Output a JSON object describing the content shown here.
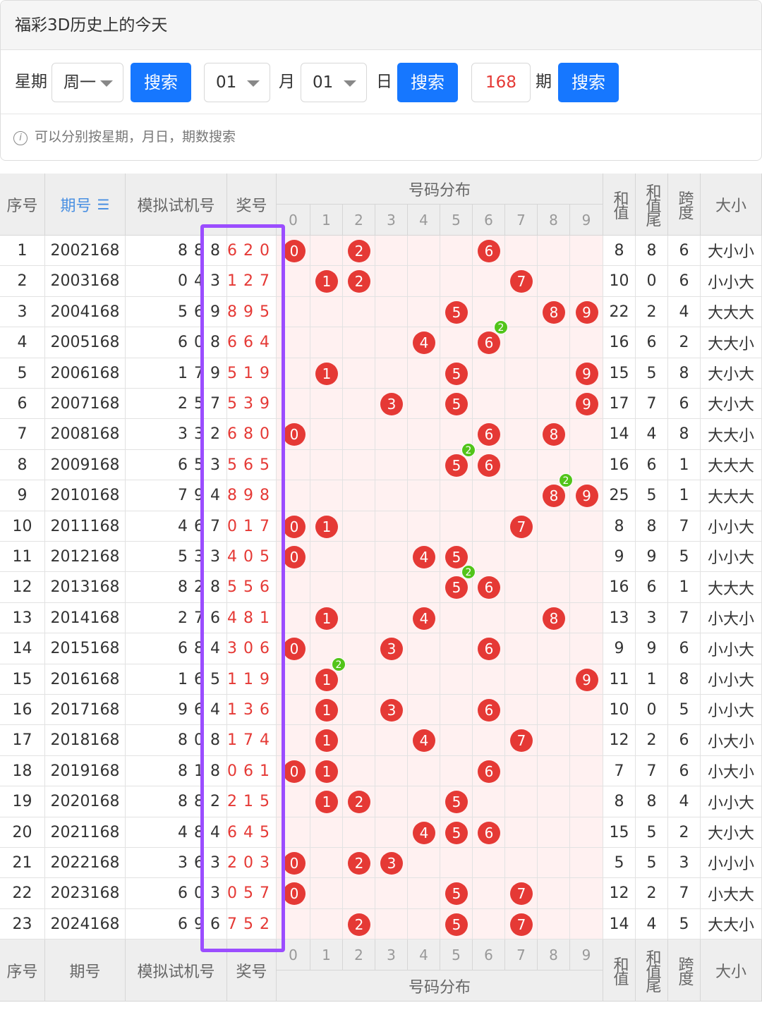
{
  "header": {
    "title": "福彩3D历史上的今天"
  },
  "search": {
    "weekday_label": "星期",
    "weekday_value": "周一",
    "search_label": "搜索",
    "month_value": "01",
    "month_label": "月",
    "day_value": "01",
    "day_label": "日",
    "issue_value": "168",
    "issue_label": "期",
    "hint": "可以分别按星期，月日，期数搜索"
  },
  "table": {
    "col_seq": "序号",
    "col_issue": "期号",
    "col_sort_icon": "sort-icon",
    "col_sim": "模拟试机号",
    "col_prize": "奖号",
    "col_dist": "号码分布",
    "digits": [
      "0",
      "1",
      "2",
      "3",
      "4",
      "5",
      "6",
      "7",
      "8",
      "9"
    ],
    "col_sum": "和值",
    "col_sum_tail": "和值尾",
    "col_span": "跨度",
    "col_size": "大小",
    "rows": [
      {
        "seq": "1",
        "issue": "2002168",
        "sim": "8 8 8",
        "prize": "6 2 0",
        "sum": "8",
        "tail": "8",
        "span": "6",
        "size": "大小小"
      },
      {
        "seq": "2",
        "issue": "2003168",
        "sim": "0 4 3",
        "prize": "1 2 7",
        "sum": "10",
        "tail": "0",
        "span": "6",
        "size": "小小大"
      },
      {
        "seq": "3",
        "issue": "2004168",
        "sim": "5 6 9",
        "prize": "8 9 5",
        "sum": "22",
        "tail": "2",
        "span": "4",
        "size": "大大大"
      },
      {
        "seq": "4",
        "issue": "2005168",
        "sim": "6 0 8",
        "prize": "6 6 4",
        "sum": "16",
        "tail": "6",
        "span": "2",
        "size": "大大小"
      },
      {
        "seq": "5",
        "issue": "2006168",
        "sim": "1 7 9",
        "prize": "5 1 9",
        "sum": "15",
        "tail": "5",
        "span": "8",
        "size": "大小大"
      },
      {
        "seq": "6",
        "issue": "2007168",
        "sim": "2 5 7",
        "prize": "5 3 9",
        "sum": "17",
        "tail": "7",
        "span": "6",
        "size": "大小大"
      },
      {
        "seq": "7",
        "issue": "2008168",
        "sim": "3 3 2",
        "prize": "6 8 0",
        "sum": "14",
        "tail": "4",
        "span": "8",
        "size": "大大小"
      },
      {
        "seq": "8",
        "issue": "2009168",
        "sim": "6 5 3",
        "prize": "5 6 5",
        "sum": "16",
        "tail": "6",
        "span": "1",
        "size": "大大大"
      },
      {
        "seq": "9",
        "issue": "2010168",
        "sim": "7 9 4",
        "prize": "8 9 8",
        "sum": "25",
        "tail": "5",
        "span": "1",
        "size": "大大大"
      },
      {
        "seq": "10",
        "issue": "2011168",
        "sim": "4 6 7",
        "prize": "0 1 7",
        "sum": "8",
        "tail": "8",
        "span": "7",
        "size": "小小大"
      },
      {
        "seq": "11",
        "issue": "2012168",
        "sim": "5 3 3",
        "prize": "4 0 5",
        "sum": "9",
        "tail": "9",
        "span": "5",
        "size": "小小大"
      },
      {
        "seq": "12",
        "issue": "2013168",
        "sim": "8 2 8",
        "prize": "5 5 6",
        "sum": "16",
        "tail": "6",
        "span": "1",
        "size": "大大大"
      },
      {
        "seq": "13",
        "issue": "2014168",
        "sim": "2 7 6",
        "prize": "4 8 1",
        "sum": "13",
        "tail": "3",
        "span": "7",
        "size": "小大小"
      },
      {
        "seq": "14",
        "issue": "2015168",
        "sim": "6 8 4",
        "prize": "3 0 6",
        "sum": "9",
        "tail": "9",
        "span": "6",
        "size": "小小大"
      },
      {
        "seq": "15",
        "issue": "2016168",
        "sim": "1 6 5",
        "prize": "1 1 9",
        "sum": "11",
        "tail": "1",
        "span": "8",
        "size": "小小大"
      },
      {
        "seq": "16",
        "issue": "2017168",
        "sim": "9 6 4",
        "prize": "1 3 6",
        "sum": "10",
        "tail": "0",
        "span": "5",
        "size": "小小大"
      },
      {
        "seq": "17",
        "issue": "2018168",
        "sim": "8 0 8",
        "prize": "1 7 4",
        "sum": "12",
        "tail": "2",
        "span": "6",
        "size": "小大小"
      },
      {
        "seq": "18",
        "issue": "2019168",
        "sim": "8 1 8",
        "prize": "0 6 1",
        "sum": "7",
        "tail": "7",
        "span": "6",
        "size": "小大小"
      },
      {
        "seq": "19",
        "issue": "2020168",
        "sim": "8 8 2",
        "prize": "2 1 5",
        "sum": "8",
        "tail": "8",
        "span": "4",
        "size": "小小大"
      },
      {
        "seq": "20",
        "issue": "2021168",
        "sim": "4 8 4",
        "prize": "6 4 5",
        "sum": "15",
        "tail": "5",
        "span": "2",
        "size": "大小大"
      },
      {
        "seq": "21",
        "issue": "2022168",
        "sim": "3 6 3",
        "prize": "2 0 3",
        "sum": "5",
        "tail": "5",
        "span": "3",
        "size": "小小小"
      },
      {
        "seq": "22",
        "issue": "2023168",
        "sim": "6 0 3",
        "prize": "0 5 7",
        "sum": "12",
        "tail": "2",
        "span": "7",
        "size": "小大大"
      },
      {
        "seq": "23",
        "issue": "2024168",
        "sim": "6 9 6",
        "prize": "7 5 2",
        "sum": "14",
        "tail": "4",
        "span": "5",
        "size": "大大小"
      }
    ]
  },
  "colors": {
    "accent": "#1677ff",
    "ball": "#e53935",
    "repeat_badge": "#52c41a",
    "highlight": "#9b4dff",
    "dist_bg": "#fff1f1"
  }
}
